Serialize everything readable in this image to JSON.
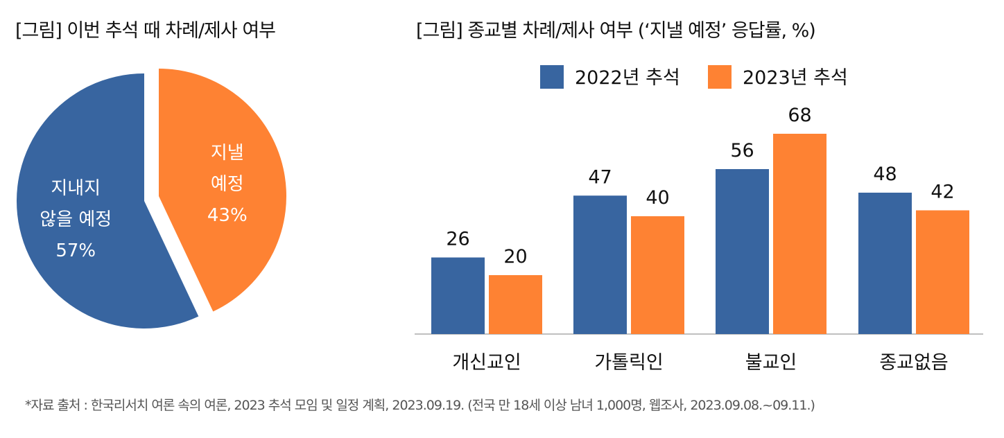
{
  "chart_data": [
    {
      "type": "pie",
      "title": "[그림] 이번 추석 때 차례/제사 여부",
      "slices": [
        {
          "label_line1": "지낼",
          "label_line2": "예정",
          "value": 43,
          "value_label": "43%",
          "color": "#FE8233"
        },
        {
          "label_line1": "지내지",
          "label_line2": "않을 예정",
          "value": 57,
          "value_label": "57%",
          "color": "#3865A0"
        }
      ]
    },
    {
      "type": "bar",
      "title": "[그림] 종교별 차례/제사 여부 (‘지낼 예정’ 응답률, %)",
      "categories": [
        "개신교인",
        "가톨릭인",
        "불교인",
        "종교없음"
      ],
      "series": [
        {
          "name": "2022년 추석",
          "values": [
            26,
            47,
            56,
            48
          ],
          "color": "#3865A0"
        },
        {
          "name": "2023년 추석",
          "values": [
            20,
            40,
            68,
            42
          ],
          "color": "#FE8233"
        }
      ],
      "ylim": [
        0,
        72
      ],
      "legend": "top-center",
      "grid": false
    }
  ],
  "footnote": "*자료 출처 : 한국리서치 여론 속의 여론, 2023 추석 모임 및 일정 계획, 2023.09.19. (전국 만 18세 이상 남녀 1,000명, 웹조사, 2023.09.08.~09.11.)"
}
